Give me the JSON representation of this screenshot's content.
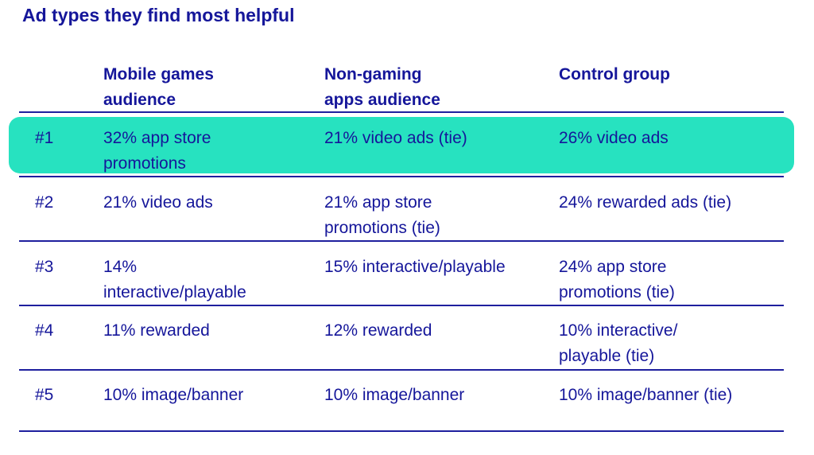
{
  "title": "Ad types they find most helpful",
  "headers": {
    "col1_line1": "Mobile games",
    "col1_line2": "audience",
    "col2_line1": "Non-gaming",
    "col2_line2": "apps audience",
    "col3_line1": "Control group"
  },
  "rows": [
    {
      "rank": "#1",
      "mobile_games": [
        "32% app store",
        "promotions"
      ],
      "non_gaming": [
        "21% video ads (tie)"
      ],
      "control": [
        "26% video ads"
      ],
      "highlighted": true
    },
    {
      "rank": "#2",
      "mobile_games": [
        "21% video ads"
      ],
      "non_gaming": [
        "21% app store",
        "promotions (tie)"
      ],
      "control": [
        "24% rewarded ads (tie)"
      ]
    },
    {
      "rank": "#3",
      "mobile_games": [
        "14%",
        "interactive/playable"
      ],
      "non_gaming": [
        "15% interactive/playable"
      ],
      "control": [
        "24% app store",
        "promotions (tie)"
      ]
    },
    {
      "rank": "#4",
      "mobile_games": [
        "11% rewarded"
      ],
      "non_gaming": [
        "12% rewarded"
      ],
      "control": [
        "10% interactive/",
        "playable (tie)"
      ]
    },
    {
      "rank": "#5",
      "mobile_games": [
        "10% image/banner"
      ],
      "non_gaming": [
        "10% image/banner"
      ],
      "control": [
        "10% image/banner (tie)"
      ]
    }
  ],
  "colors": {
    "text": "#15169a",
    "highlight": "#27e2c0",
    "rule": "#1e1f9e"
  }
}
